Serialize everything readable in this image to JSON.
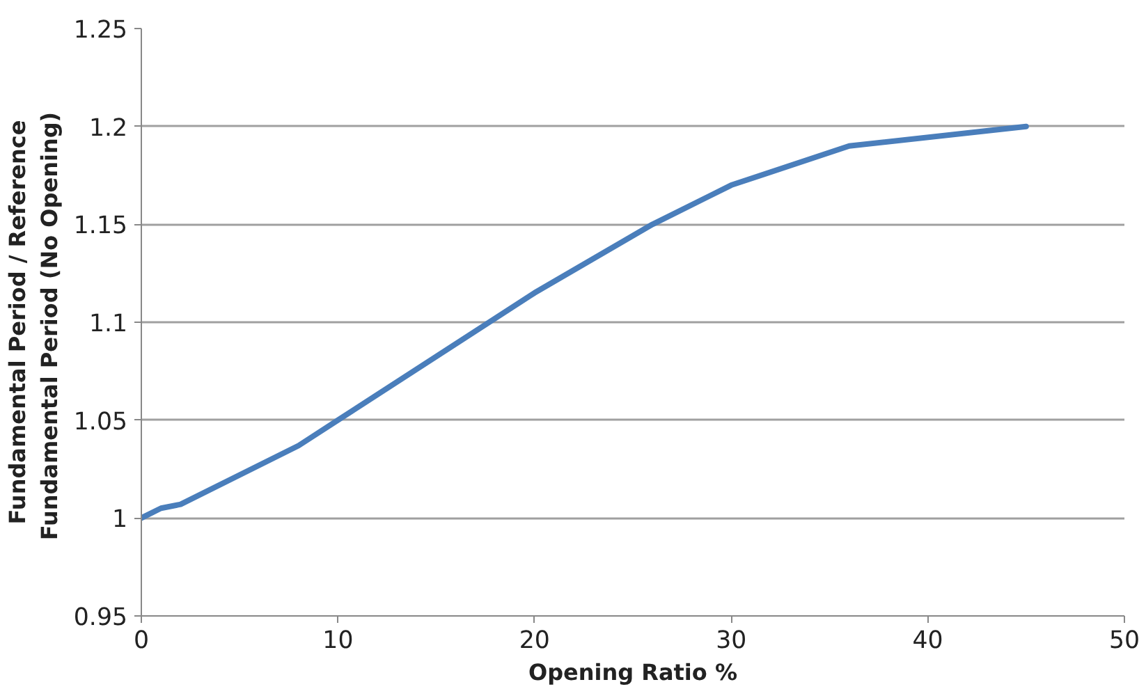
{
  "chart_data": {
    "type": "line",
    "xlabel": "Opening Ratio %",
    "ylabel": "Fundamental Period / Reference\nFundamental Period  (No Opening)",
    "x": [
      0,
      1,
      2,
      8,
      10,
      20,
      26,
      30,
      36,
      45
    ],
    "series": [
      {
        "color": "#4a7ebb",
        "values": [
          1.0,
          1.005,
          1.007,
          1.037,
          1.05,
          1.115,
          1.15,
          1.17,
          1.19,
          1.2
        ]
      }
    ],
    "xlim": [
      0,
      50
    ],
    "xticks": [
      0,
      10,
      20,
      30,
      40,
      50
    ],
    "ylim": [
      0.95,
      1.25
    ],
    "yticks": [
      0.95,
      1,
      1.05,
      1.1,
      1.15,
      1.2,
      1.25
    ],
    "grid": "y",
    "marker": "none",
    "line_style": "solid"
  }
}
